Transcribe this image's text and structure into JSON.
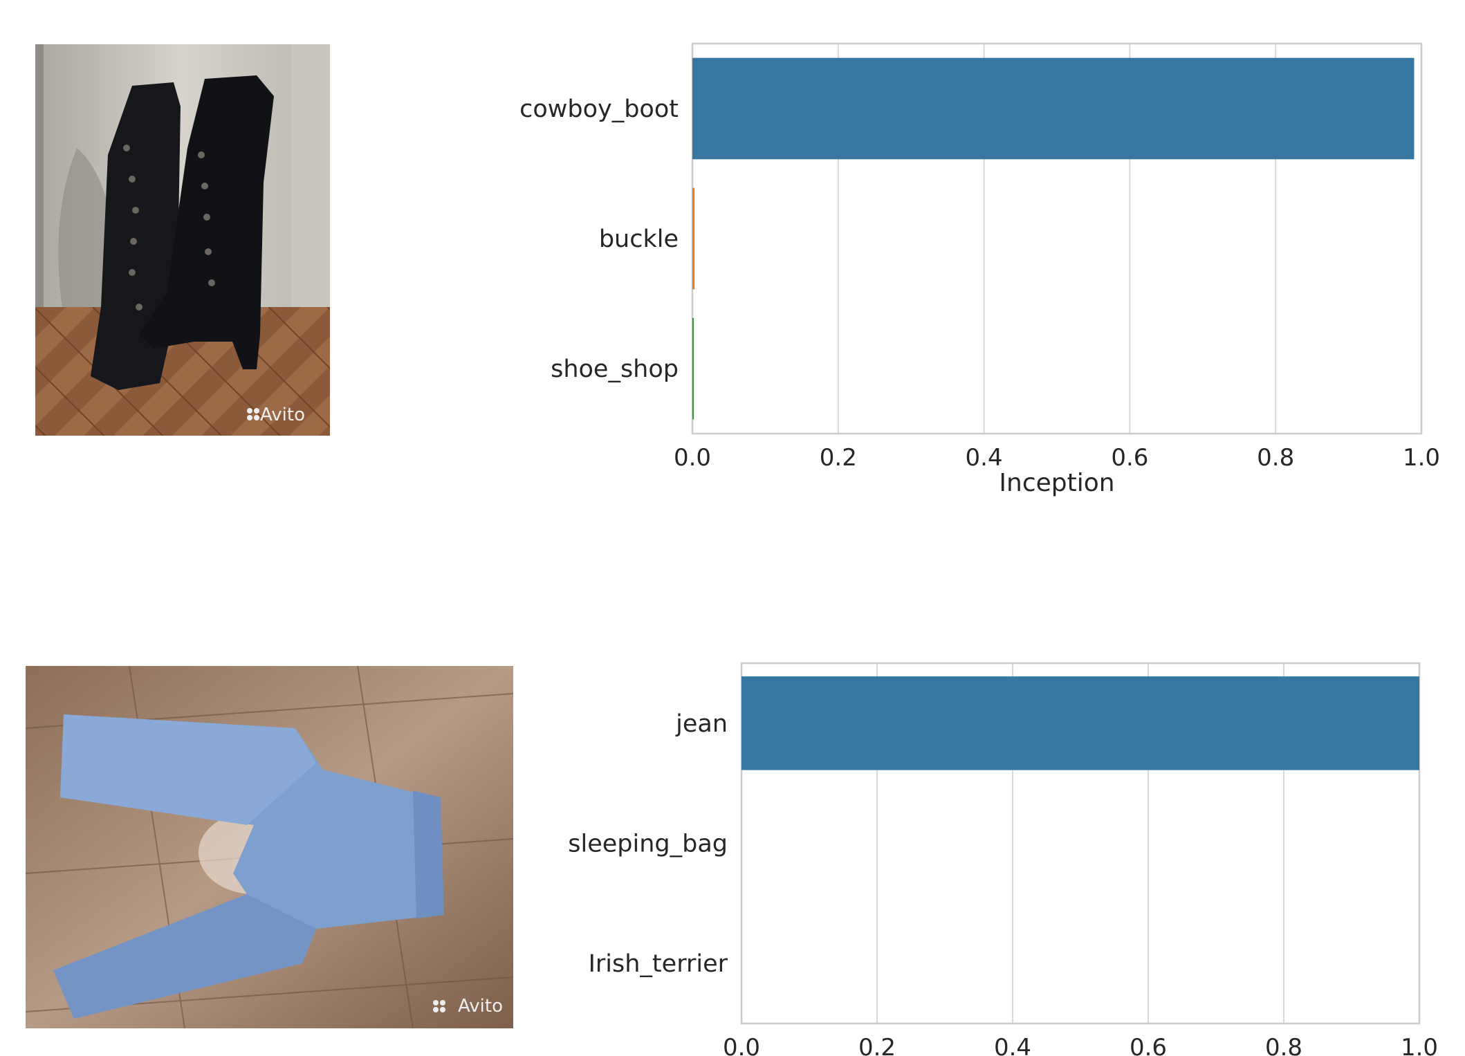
{
  "photos": [
    {
      "subject": "black lace-up knee-high boots on a parquet floor",
      "watermark": "Avito"
    },
    {
      "subject": "light blue children's jeans on a wood-laminate floor",
      "watermark": "Avito"
    }
  ],
  "chart_data": [
    {
      "type": "bar",
      "orientation": "horizontal",
      "categories": [
        "cowboy_boot",
        "buckle",
        "shoe_shop"
      ],
      "values": [
        0.99,
        0.003,
        0.002
      ],
      "colors": [
        "#3776a1",
        "#e1812c",
        "#3a923a"
      ],
      "xlabel": "Inception",
      "xlim": [
        0,
        1
      ],
      "xticks": [
        "0.0",
        "0.2",
        "0.4",
        "0.6",
        "0.8",
        "1.0"
      ],
      "grid": true
    },
    {
      "type": "bar",
      "orientation": "horizontal",
      "categories": [
        "jean",
        "sleeping_bag",
        "Irish_terrier"
      ],
      "values": [
        1.0,
        0.0,
        0.0
      ],
      "colors": [
        "#3776a1",
        "#e1812c",
        "#3a923a"
      ],
      "xlabel": "",
      "xlim": [
        0,
        1
      ],
      "xticks": [
        "0.0",
        "0.2",
        "0.4",
        "0.6",
        "0.8",
        "1.0"
      ],
      "grid": true
    }
  ]
}
